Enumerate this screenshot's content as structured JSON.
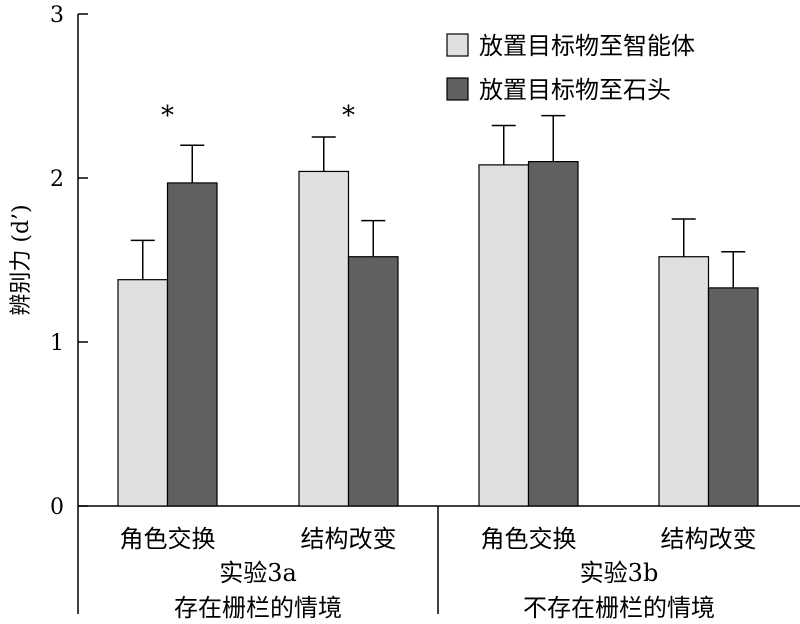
{
  "chart_data": {
    "type": "bar",
    "ylabel": "辨别力 (d’)",
    "ylim": [
      0,
      3
    ],
    "yticks": [
      "0",
      "1",
      "2",
      "3"
    ],
    "categories": [
      "角色交换",
      "结构改变",
      "角色交换",
      "结构改变"
    ],
    "groups": [
      {
        "experiment": "实验3a",
        "condition": "存在栅栏的情境"
      },
      {
        "experiment": "实验3b",
        "condition": "不存在栅栏的情境"
      }
    ],
    "series": [
      {
        "name": "放置目标物至智能体",
        "color": "#e0e0e0",
        "values": [
          1.38,
          2.04,
          2.08,
          1.52
        ],
        "errors": [
          0.24,
          0.21,
          0.24,
          0.23
        ]
      },
      {
        "name": "放置目标物至石头",
        "color": "#606060",
        "values": [
          1.97,
          1.52,
          2.1,
          1.33
        ],
        "errors": [
          0.23,
          0.22,
          0.28,
          0.22
        ]
      }
    ],
    "significance": [
      "*",
      "*",
      "",
      ""
    ],
    "legend_position": "top-right",
    "grid": false
  }
}
